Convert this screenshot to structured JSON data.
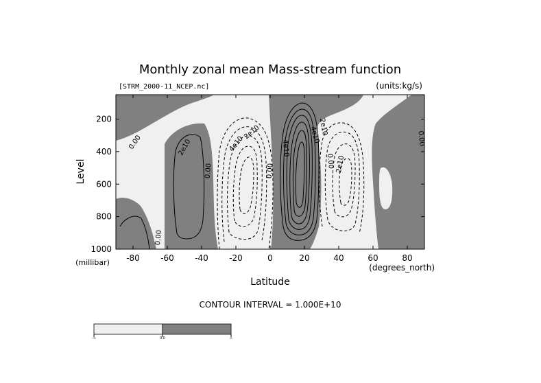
{
  "chart_data": {
    "type": "contour",
    "title": "Monthly zonal mean Mass-stream function",
    "file_label": "[STRM_2000-11_NCEP.nc]",
    "units_label": "(units:kg/s)",
    "xlabel": "Latitude",
    "x_unit_label": "(degrees_north)",
    "ylabel": "Level",
    "y_unit_label": "(millibar)",
    "xlim": [
      -90,
      90
    ],
    "ylim": [
      1000,
      50
    ],
    "x_ticks": [
      {
        "value": -80,
        "label": "-80"
      },
      {
        "value": -60,
        "label": "-60"
      },
      {
        "value": -40,
        "label": "-40"
      },
      {
        "value": -20,
        "label": "-20"
      },
      {
        "value": 0,
        "label": "0"
      },
      {
        "value": 20,
        "label": "20"
      },
      {
        "value": 40,
        "label": "40"
      },
      {
        "value": 60,
        "label": "60"
      },
      {
        "value": 80,
        "label": "80"
      }
    ],
    "y_ticks": [
      {
        "value": 200,
        "label": "200"
      },
      {
        "value": 400,
        "label": "400"
      },
      {
        "value": 600,
        "label": "600"
      },
      {
        "value": 800,
        "label": "800"
      },
      {
        "value": 1000,
        "label": "1000"
      }
    ],
    "contour_interval_text": "CONTOUR INTERVAL = 1.000E+10",
    "fill_positive_color": "#808080",
    "fill_negative_color": "#f0f0f0",
    "contour_labels": [
      {
        "text": "0.00",
        "x": -78,
        "y": 350,
        "rot": -55
      },
      {
        "text": "2e10",
        "x": -49,
        "y": 380,
        "rot": -60
      },
      {
        "text": "0.00",
        "x": -35,
        "y": 520,
        "rot": -85
      },
      {
        "text": "4e10",
        "x": -19,
        "y": 360,
        "rot": -50
      },
      {
        "text": "2e10",
        "x": -10,
        "y": 290,
        "rot": -40
      },
      {
        "text": "0.00",
        "x": 1,
        "y": 520,
        "rot": -85
      },
      {
        "text": "4e10",
        "x": 8,
        "y": 380,
        "rot": 85
      },
      {
        "text": "4e10",
        "x": 25,
        "y": 300,
        "rot": 75
      },
      {
        "text": "2e10",
        "x": 30,
        "y": 250,
        "rot": 80
      },
      {
        "text": "0.00",
        "x": 34,
        "y": 460,
        "rot": 85
      },
      {
        "text": "2e10",
        "x": 42,
        "y": 480,
        "rot": -80
      },
      {
        "text": "0.00",
        "x": 87,
        "y": 320,
        "rot": 85
      },
      {
        "text": "0.00",
        "x": -64,
        "y": 930,
        "rot": -85
      }
    ],
    "colorbar": {
      "labels": [
        "-∞",
        "0.0",
        "∞"
      ],
      "colors": [
        "#f0f0f0",
        "#808080"
      ]
    }
  }
}
